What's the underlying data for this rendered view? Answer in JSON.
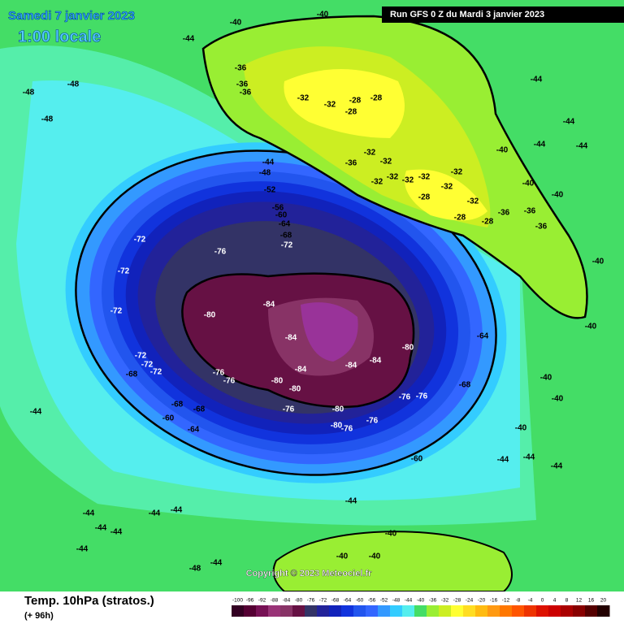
{
  "header": {
    "date": "Samedi 7 janvier 2023",
    "time": "1:00 locale",
    "run": "Run GFS 0 Z du Mardi 3 janvier 2023"
  },
  "footer": {
    "title": "Temp. 10hPa (stratos.)",
    "subtitle": "(+ 96h)",
    "copyright": "Copyright © 2023 Meteociel.fr"
  },
  "legend": {
    "values": [
      -100,
      -96,
      -92,
      -88,
      -84,
      -80,
      -76,
      -72,
      -68,
      -64,
      -60,
      -56,
      -52,
      -48,
      -44,
      -40,
      -36,
      -32,
      -28,
      -24,
      -20,
      -16,
      -12,
      -8,
      -4,
      0,
      4,
      8,
      12,
      16,
      20
    ],
    "colors": [
      "#330022",
      "#550033",
      "#771155",
      "#993377",
      "#883366",
      "#661144",
      "#333366",
      "#222299",
      "#1122bb",
      "#1133dd",
      "#2255ee",
      "#3366ff",
      "#3399ff",
      "#33ccff",
      "#55eeee",
      "#44dd66",
      "#99ee33",
      "#ccee22",
      "#ffff33",
      "#ffdd22",
      "#ffbb11",
      "#ff9911",
      "#ff7700",
      "#ff5500",
      "#ee3300",
      "#dd1100",
      "#cc0000",
      "#aa0000",
      "#880000",
      "#550000",
      "#220000"
    ]
  },
  "contour_labels": [
    -40,
    -40,
    -44,
    -48,
    -48,
    -48,
    -44,
    -44,
    -44,
    -44,
    -36,
    -36,
    -36,
    -32,
    -32,
    -28,
    -28,
    -28,
    -32,
    -36,
    -32,
    -32,
    -32,
    -32,
    -32,
    -32,
    -28,
    -32,
    -32,
    -28,
    -28,
    -36,
    -36,
    -36,
    -40,
    -40,
    -40,
    -44,
    -48,
    -52,
    -56,
    -60,
    -64,
    -68,
    -72,
    -72,
    -72,
    -72,
    -76,
    -80,
    -84,
    -84,
    -84,
    -84,
    -84,
    -80,
    -80,
    -80,
    -80,
    -76,
    -76,
    -76,
    -76,
    -76,
    -76,
    -76,
    -80,
    -68,
    -68,
    -60,
    -64,
    -64,
    -68,
    -72,
    -72,
    -72,
    -68,
    -44,
    -44,
    -44,
    -44,
    -44,
    -44,
    -44,
    -40,
    -40,
    -40,
    -44,
    -48,
    -44,
    -40,
    -40,
    -40,
    -40,
    -40,
    -44,
    -44,
    -44,
    -60
  ]
}
